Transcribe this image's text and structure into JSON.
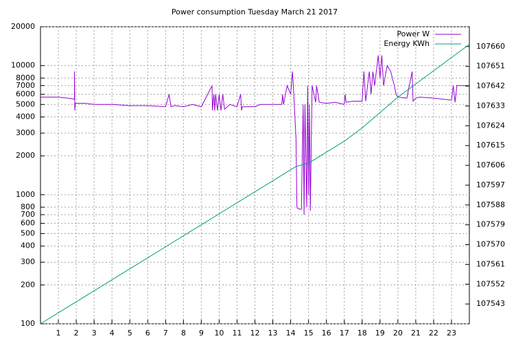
{
  "chart_data": {
    "type": "line",
    "title": "Power consumption Tuesday March 21 2017",
    "xlim": [
      0,
      24
    ],
    "xticks": [
      1,
      2,
      3,
      4,
      5,
      6,
      7,
      8,
      9,
      10,
      11,
      12,
      13,
      14,
      15,
      16,
      17,
      18,
      19,
      20,
      21,
      22,
      23
    ],
    "ylim": [
      100,
      20000
    ],
    "yscale": "log",
    "yticks": [
      100,
      200,
      300,
      400,
      500,
      600,
      700,
      800,
      1000,
      2000,
      3000,
      4000,
      5000,
      6000,
      7000,
      8000,
      10000,
      20000
    ],
    "y2lim": [
      107534,
      107669
    ],
    "y2ticks": [
      107543,
      107552,
      107561,
      107570,
      107579,
      107588,
      107597,
      107606,
      107615,
      107624,
      107633,
      107642,
      107651,
      107660
    ],
    "grid": true,
    "legend": "upper right",
    "series": [
      {
        "name": "Power W",
        "color": "#9400d3",
        "x": [
          0,
          1,
          1.5,
          1.9,
          1.9,
          1.92,
          1.95,
          2.5,
          3,
          4,
          5,
          6,
          7,
          7.2,
          7.3,
          7.5,
          8,
          8.5,
          9,
          9.6,
          9.62,
          9.7,
          9.75,
          9.8,
          9.9,
          10,
          10.1,
          10.2,
          10.3,
          10.6,
          11,
          11.2,
          11.25,
          11.3,
          12,
          12.3,
          13,
          13.5,
          13.55,
          13.6,
          13.8,
          14,
          14.1,
          14.15,
          14.3,
          14.35,
          14.4,
          14.6,
          14.7,
          14.75,
          14.8,
          14.9,
          14.95,
          15.0,
          15.05,
          15.1,
          15.2,
          15.4,
          15.45,
          15.6,
          16,
          16.5,
          17,
          17.05,
          17.1,
          17.5,
          18,
          18.1,
          18.2,
          18.4,
          18.5,
          18.6,
          18.7,
          18.9,
          19,
          19.1,
          19.2,
          19.4,
          19.6,
          19.8,
          19.9,
          20,
          20.5,
          20.8,
          20.85,
          21,
          21.2,
          22,
          22.5,
          23,
          23.1,
          23.2,
          23.3,
          23.5,
          24
        ],
        "values": [
          5700,
          5700,
          5600,
          5500,
          9000,
          4500,
          5100,
          5100,
          5000,
          5000,
          4900,
          4900,
          4800,
          6000,
          4800,
          4900,
          4800,
          5000,
          4800,
          7000,
          4500,
          6000,
          4500,
          6000,
          4500,
          6000,
          4500,
          6000,
          4600,
          5000,
          4800,
          6000,
          4500,
          4800,
          4800,
          5000,
          5000,
          5000,
          6000,
          5000,
          7000,
          6000,
          9000,
          7000,
          2700,
          800,
          780,
          770,
          5000,
          700,
          5000,
          800,
          7000,
          1000,
          5000,
          750,
          7000,
          5200,
          7000,
          5200,
          5100,
          5200,
          5000,
          6000,
          5200,
          5300,
          5300,
          9000,
          5300,
          9000,
          6000,
          9000,
          7000,
          12000,
          8000,
          12000,
          7000,
          10000,
          9000,
          7000,
          6000,
          5700,
          5600,
          9000,
          5300,
          5600,
          5700,
          5600,
          5500,
          5400,
          7000,
          5200,
          7000,
          7000,
          7000
        ]
      },
      {
        "name": "Energy KWh",
        "color": "#009e73",
        "axis": "y2",
        "x": [
          0,
          1,
          2,
          3,
          4,
          5,
          6,
          7,
          8,
          9,
          10,
          11,
          12,
          13,
          14,
          14.3,
          15,
          16,
          17,
          18,
          19,
          20,
          21,
          22,
          23,
          24
        ],
        "values": [
          107534,
          107539,
          107544,
          107549,
          107554,
          107559,
          107564,
          107569,
          107574,
          107579,
          107584,
          107589,
          107594,
          107599,
          107604,
          107605.5,
          107607,
          107612,
          107617,
          107623,
          107630,
          107637,
          107643,
          107649,
          107655,
          107661
        ]
      }
    ]
  }
}
